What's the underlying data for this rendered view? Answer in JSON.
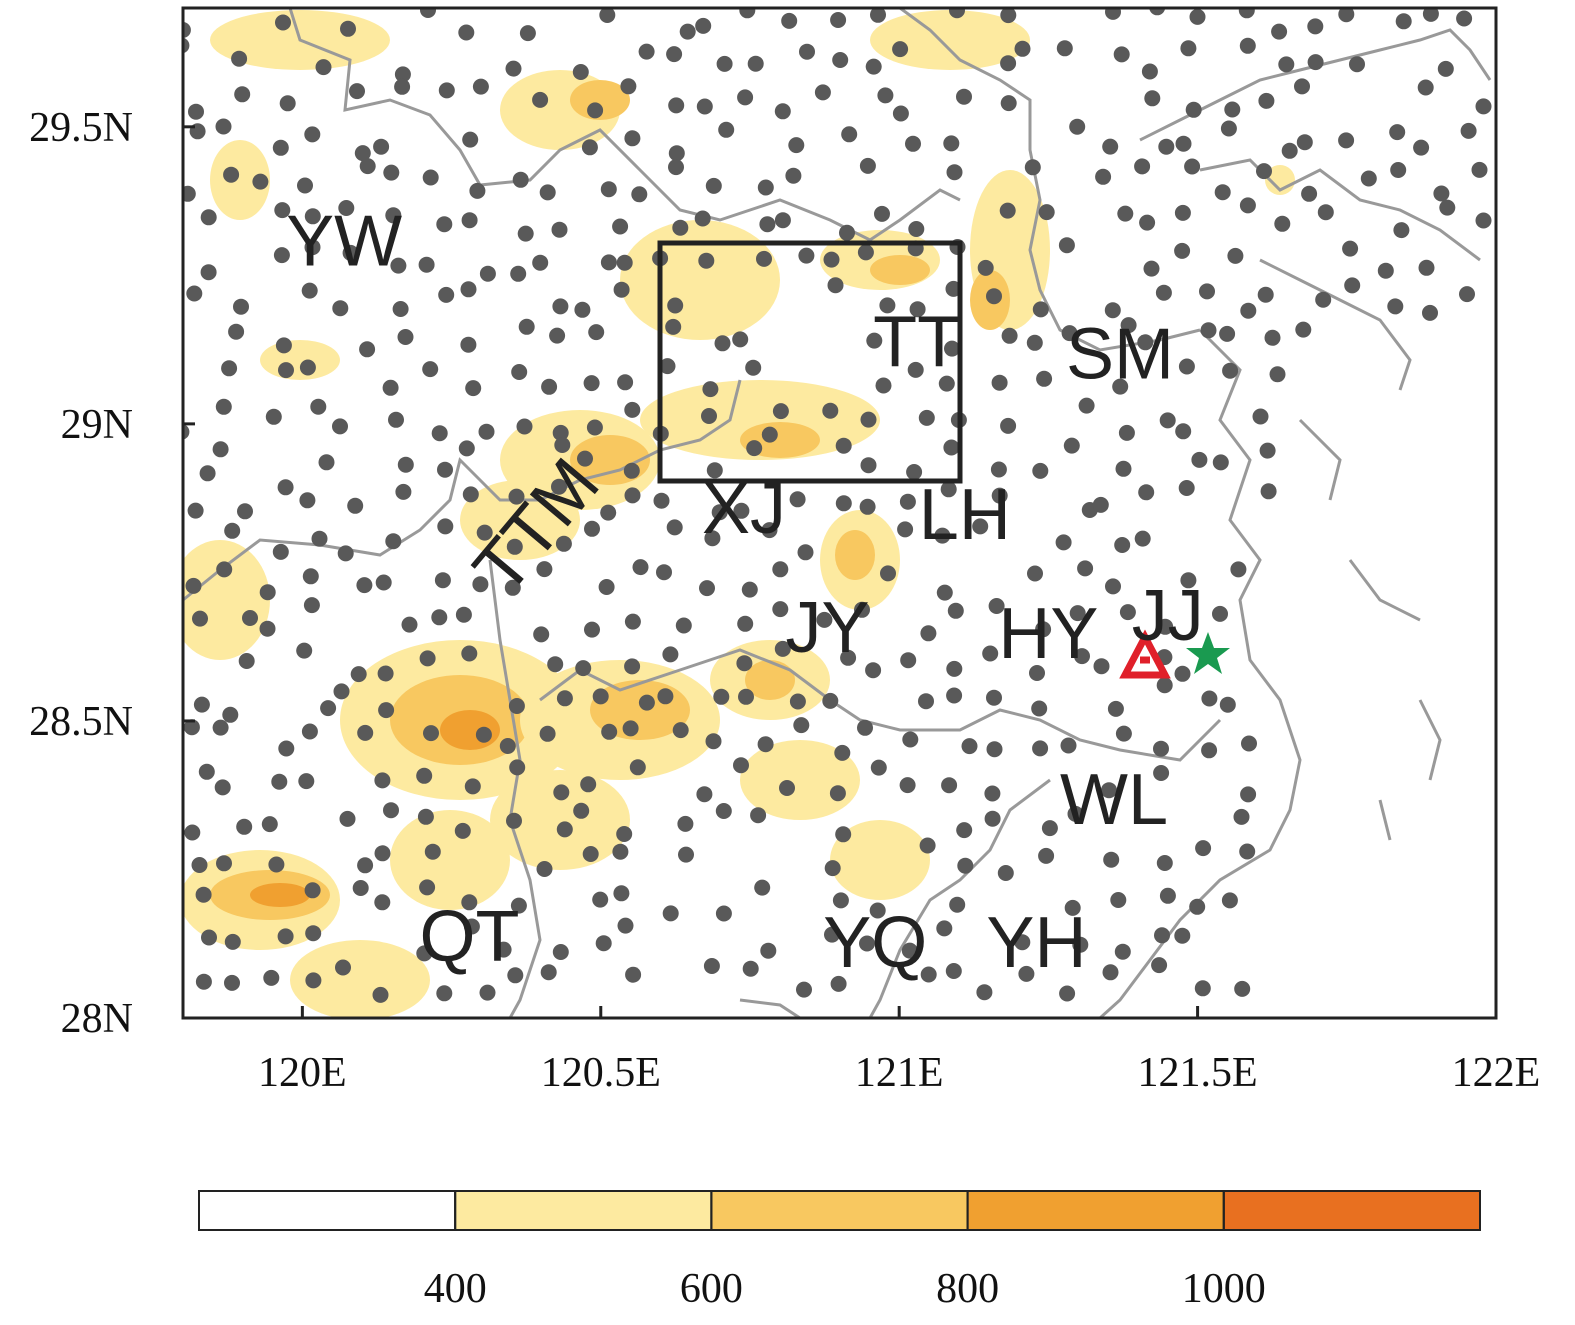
{
  "chart_data": {
    "type": "map",
    "xlim": [
      119.8,
      122
    ],
    "ylim": [
      28,
      29.7
    ],
    "xticks": [
      {
        "value": 120,
        "label": "120E"
      },
      {
        "value": 120.5,
        "label": "120.5E"
      },
      {
        "value": 121,
        "label": "121E"
      },
      {
        "value": 121.5,
        "label": "121.5E"
      },
      {
        "value": 122,
        "label": "122E"
      }
    ],
    "yticks": [
      {
        "value": 28,
        "label": "28N"
      },
      {
        "value": 28.5,
        "label": "28.5N"
      },
      {
        "value": 29,
        "label": "29N"
      },
      {
        "value": 29.5,
        "label": "29.5N"
      }
    ],
    "places": [
      {
        "name": "YW",
        "lon": 120.07,
        "lat": 29.31
      },
      {
        "name": "TT",
        "lon": 121.03,
        "lat": 29.14
      },
      {
        "name": "SM",
        "lon": 121.37,
        "lat": 29.12
      },
      {
        "name": "XJ",
        "lon": 120.74,
        "lat": 28.86
      },
      {
        "name": "LH",
        "lon": 121.11,
        "lat": 28.85
      },
      {
        "name": "TTM",
        "lon": 120.39,
        "lat": 28.83
      },
      {
        "name": "JY",
        "lon": 120.88,
        "lat": 28.66
      },
      {
        "name": "HY",
        "lon": 121.25,
        "lat": 28.65
      },
      {
        "name": "JJ",
        "lon": 121.45,
        "lat": 28.68
      },
      {
        "name": "WL",
        "lon": 121.36,
        "lat": 28.37
      },
      {
        "name": "QT",
        "lon": 120.28,
        "lat": 28.14
      },
      {
        "name": "YQ",
        "lon": 120.96,
        "lat": 28.13
      },
      {
        "name": "YH",
        "lon": 121.23,
        "lat": 28.13
      }
    ],
    "colorbar": {
      "levels": [
        400,
        600,
        800,
        1000
      ],
      "colors": [
        "#ffffff",
        "#fdeaa0",
        "#f8c860",
        "#f0a030",
        "#e87020"
      ]
    }
  }
}
